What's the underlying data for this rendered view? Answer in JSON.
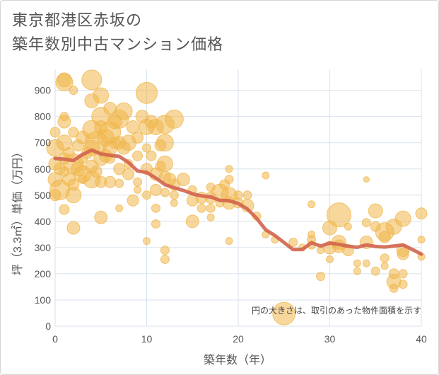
{
  "title": "東京都港区赤坂の\n築年数別中古マンション価格",
  "chart_data": {
    "type": "scatter",
    "title": "東京都港区赤坂の築年数別中古マンション価格",
    "xlabel": "築年数（年）",
    "ylabel": "坪（3.3㎡）単価（万円）",
    "xlim": [
      0,
      40
    ],
    "ylim": [
      0,
      980
    ],
    "xticks": [
      0,
      10,
      20,
      30,
      40
    ],
    "yticks": [
      0,
      100,
      200,
      300,
      400,
      500,
      600,
      700,
      800,
      900
    ],
    "grid": true,
    "annotation": "円の大きさは、取引のあった物件面積を示す",
    "colors": {
      "bubble": "#f0b64a",
      "line": "#d1644e",
      "grid": "#d8e2ec"
    },
    "bubbles": [
      {
        "x": 0,
        "y": 500,
        "r": 8
      },
      {
        "x": 0,
        "y": 560,
        "r": 10
      },
      {
        "x": 0,
        "y": 620,
        "r": 9
      },
      {
        "x": 0,
        "y": 680,
        "r": 12
      },
      {
        "x": 0,
        "y": 740,
        "r": 7
      },
      {
        "x": 0.5,
        "y": 520,
        "r": 14
      },
      {
        "x": 0.5,
        "y": 600,
        "r": 8
      },
      {
        "x": 1,
        "y": 930,
        "r": 12
      },
      {
        "x": 1,
        "y": 940,
        "r": 10
      },
      {
        "x": 1,
        "y": 780,
        "r": 9
      },
      {
        "x": 1,
        "y": 700,
        "r": 11
      },
      {
        "x": 1,
        "y": 640,
        "r": 8
      },
      {
        "x": 1,
        "y": 590,
        "r": 7
      },
      {
        "x": 1,
        "y": 445,
        "r": 7
      },
      {
        "x": 1,
        "y": 800,
        "r": 6
      },
      {
        "x": 1.5,
        "y": 560,
        "r": 9
      },
      {
        "x": 1.5,
        "y": 660,
        "r": 8
      },
      {
        "x": 2,
        "y": 500,
        "r": 11
      },
      {
        "x": 2,
        "y": 620,
        "r": 14
      },
      {
        "x": 2,
        "y": 540,
        "r": 8
      },
      {
        "x": 2,
        "y": 375,
        "r": 9
      },
      {
        "x": 2,
        "y": 740,
        "r": 7
      },
      {
        "x": 2,
        "y": 900,
        "r": 6
      },
      {
        "x": 2.5,
        "y": 600,
        "r": 10
      },
      {
        "x": 2.5,
        "y": 690,
        "r": 8
      },
      {
        "x": 3,
        "y": 580,
        "r": 12
      },
      {
        "x": 3,
        "y": 720,
        "r": 9
      },
      {
        "x": 3,
        "y": 640,
        "r": 7
      },
      {
        "x": 3,
        "y": 560,
        "r": 6
      },
      {
        "x": 3.5,
        "y": 660,
        "r": 8
      },
      {
        "x": 4,
        "y": 940,
        "r": 14
      },
      {
        "x": 4,
        "y": 860,
        "r": 10
      },
      {
        "x": 4,
        "y": 750,
        "r": 13
      },
      {
        "x": 4,
        "y": 680,
        "r": 11
      },
      {
        "x": 4,
        "y": 610,
        "r": 9
      },
      {
        "x": 4,
        "y": 560,
        "r": 12
      },
      {
        "x": 4.5,
        "y": 700,
        "r": 16
      },
      {
        "x": 4.5,
        "y": 590,
        "r": 8
      },
      {
        "x": 5,
        "y": 880,
        "r": 11
      },
      {
        "x": 5,
        "y": 800,
        "r": 13
      },
      {
        "x": 5,
        "y": 760,
        "r": 9
      },
      {
        "x": 5,
        "y": 640,
        "r": 10
      },
      {
        "x": 5,
        "y": 550,
        "r": 8
      },
      {
        "x": 5,
        "y": 415,
        "r": 9
      },
      {
        "x": 5.5,
        "y": 720,
        "r": 12
      },
      {
        "x": 5.5,
        "y": 650,
        "r": 9
      },
      {
        "x": 6,
        "y": 830,
        "r": 9
      },
      {
        "x": 6,
        "y": 740,
        "r": 15
      },
      {
        "x": 6,
        "y": 680,
        "r": 10
      },
      {
        "x": 6,
        "y": 550,
        "r": 8
      },
      {
        "x": 6,
        "y": 640,
        "r": 7
      },
      {
        "x": 6.5,
        "y": 780,
        "r": 10
      },
      {
        "x": 6.5,
        "y": 700,
        "r": 8
      },
      {
        "x": 7,
        "y": 790,
        "r": 13
      },
      {
        "x": 7,
        "y": 700,
        "r": 9
      },
      {
        "x": 7,
        "y": 600,
        "r": 8
      },
      {
        "x": 7,
        "y": 545,
        "r": 6
      },
      {
        "x": 7,
        "y": 450,
        "r": 5
      },
      {
        "x": 7.5,
        "y": 820,
        "r": 12
      },
      {
        "x": 7.5,
        "y": 680,
        "r": 9
      },
      {
        "x": 8,
        "y": 700,
        "r": 11
      },
      {
        "x": 8,
        "y": 580,
        "r": 8
      },
      {
        "x": 8,
        "y": 620,
        "r": 6
      },
      {
        "x": 8.5,
        "y": 760,
        "r": 9
      },
      {
        "x": 8.5,
        "y": 480,
        "r": 8
      },
      {
        "x": 9,
        "y": 720,
        "r": 8
      },
      {
        "x": 9,
        "y": 650,
        "r": 7
      },
      {
        "x": 9,
        "y": 550,
        "r": 6
      },
      {
        "x": 9,
        "y": 520,
        "r": 5
      },
      {
        "x": 9.5,
        "y": 800,
        "r": 9
      },
      {
        "x": 10,
        "y": 890,
        "r": 15
      },
      {
        "x": 10,
        "y": 760,
        "r": 11
      },
      {
        "x": 10,
        "y": 680,
        "r": 6
      },
      {
        "x": 10,
        "y": 600,
        "r": 8
      },
      {
        "x": 10,
        "y": 500,
        "r": 6
      },
      {
        "x": 10,
        "y": 325,
        "r": 5
      },
      {
        "x": 10.5,
        "y": 780,
        "r": 9
      },
      {
        "x": 10.5,
        "y": 650,
        "r": 7
      },
      {
        "x": 11,
        "y": 760,
        "r": 11
      },
      {
        "x": 11,
        "y": 580,
        "r": 9
      },
      {
        "x": 11,
        "y": 520,
        "r": 8
      },
      {
        "x": 11,
        "y": 450,
        "r": 6
      },
      {
        "x": 11,
        "y": 390,
        "r": 6
      },
      {
        "x": 11.5,
        "y": 690,
        "r": 8
      },
      {
        "x": 11.5,
        "y": 610,
        "r": 7
      },
      {
        "x": 12,
        "y": 770,
        "r": 13
      },
      {
        "x": 12,
        "y": 700,
        "r": 12
      },
      {
        "x": 12,
        "y": 620,
        "r": 11
      },
      {
        "x": 12,
        "y": 570,
        "r": 8
      },
      {
        "x": 12,
        "y": 510,
        "r": 6
      },
      {
        "x": 12,
        "y": 290,
        "r": 6
      },
      {
        "x": 12,
        "y": 255,
        "r": 6
      },
      {
        "x": 12.5,
        "y": 560,
        "r": 9
      },
      {
        "x": 13,
        "y": 790,
        "r": 13
      },
      {
        "x": 13,
        "y": 540,
        "r": 8
      },
      {
        "x": 13,
        "y": 500,
        "r": 6
      },
      {
        "x": 13,
        "y": 470,
        "r": 5
      },
      {
        "x": 14,
        "y": 560,
        "r": 9
      },
      {
        "x": 15,
        "y": 520,
        "r": 6
      },
      {
        "x": 15,
        "y": 480,
        "r": 8
      },
      {
        "x": 15,
        "y": 400,
        "r": 9
      },
      {
        "x": 16,
        "y": 490,
        "r": 8
      },
      {
        "x": 16,
        "y": 450,
        "r": 6
      },
      {
        "x": 17,
        "y": 530,
        "r": 6
      },
      {
        "x": 17,
        "y": 490,
        "r": 8
      },
      {
        "x": 17,
        "y": 450,
        "r": 6
      },
      {
        "x": 17,
        "y": 415,
        "r": 5
      },
      {
        "x": 18,
        "y": 510,
        "r": 12
      },
      {
        "x": 18,
        "y": 470,
        "r": 6
      },
      {
        "x": 18.5,
        "y": 540,
        "r": 7
      },
      {
        "x": 19,
        "y": 600,
        "r": 5
      },
      {
        "x": 19,
        "y": 560,
        "r": 6
      },
      {
        "x": 19,
        "y": 500,
        "r": 11
      },
      {
        "x": 19,
        "y": 470,
        "r": 9
      },
      {
        "x": 19,
        "y": 325,
        "r": 5
      },
      {
        "x": 20,
        "y": 500,
        "r": 6
      },
      {
        "x": 20,
        "y": 470,
        "r": 7
      },
      {
        "x": 21,
        "y": 460,
        "r": 9
      },
      {
        "x": 21,
        "y": 500,
        "r": 6
      },
      {
        "x": 22,
        "y": 420,
        "r": 6
      },
      {
        "x": 23,
        "y": 575,
        "r": 5
      },
      {
        "x": 23,
        "y": 350,
        "r": 5
      },
      {
        "x": 24,
        "y": 330,
        "r": 5
      },
      {
        "x": 25,
        "y": 48,
        "r": 16
      },
      {
        "x": 26,
        "y": 320,
        "r": 6
      },
      {
        "x": 27,
        "y": 300,
        "r": 5
      },
      {
        "x": 28,
        "y": 465,
        "r": 5
      },
      {
        "x": 28,
        "y": 350,
        "r": 5
      },
      {
        "x": 28,
        "y": 330,
        "r": 6
      },
      {
        "x": 28,
        "y": 310,
        "r": 6
      },
      {
        "x": 29,
        "y": 290,
        "r": 5
      },
      {
        "x": 29,
        "y": 190,
        "r": 6
      },
      {
        "x": 30,
        "y": 375,
        "r": 10
      },
      {
        "x": 30,
        "y": 300,
        "r": 9
      },
      {
        "x": 30,
        "y": 255,
        "r": 5
      },
      {
        "x": 31,
        "y": 425,
        "r": 17
      },
      {
        "x": 31,
        "y": 320,
        "r": 10
      },
      {
        "x": 31,
        "y": 305,
        "r": 9
      },
      {
        "x": 32,
        "y": 290,
        "r": 8
      },
      {
        "x": 32,
        "y": 380,
        "r": 5
      },
      {
        "x": 33,
        "y": 240,
        "r": 5
      },
      {
        "x": 33,
        "y": 210,
        "r": 5
      },
      {
        "x": 34,
        "y": 560,
        "r": 4
      },
      {
        "x": 34,
        "y": 395,
        "r": 6
      },
      {
        "x": 34,
        "y": 320,
        "r": 9
      },
      {
        "x": 34,
        "y": 240,
        "r": 5
      },
      {
        "x": 35,
        "y": 440,
        "r": 10
      },
      {
        "x": 35,
        "y": 380,
        "r": 7
      },
      {
        "x": 35,
        "y": 210,
        "r": 6
      },
      {
        "x": 36,
        "y": 360,
        "r": 13
      },
      {
        "x": 36,
        "y": 340,
        "r": 8
      },
      {
        "x": 36,
        "y": 260,
        "r": 6
      },
      {
        "x": 36,
        "y": 230,
        "r": 5
      },
      {
        "x": 37,
        "y": 380,
        "r": 11
      },
      {
        "x": 37,
        "y": 200,
        "r": 7
      },
      {
        "x": 37,
        "y": 170,
        "r": 10
      },
      {
        "x": 37,
        "y": 145,
        "r": 6
      },
      {
        "x": 38,
        "y": 410,
        "r": 11
      },
      {
        "x": 38,
        "y": 290,
        "r": 9
      },
      {
        "x": 38,
        "y": 275,
        "r": 8
      },
      {
        "x": 38,
        "y": 200,
        "r": 6
      },
      {
        "x": 38,
        "y": 160,
        "r": 6
      },
      {
        "x": 40,
        "y": 430,
        "r": 8
      },
      {
        "x": 40,
        "y": 330,
        "r": 5
      },
      {
        "x": 40,
        "y": 265,
        "r": 5
      }
    ],
    "trend": [
      {
        "x": 0,
        "y": 640
      },
      {
        "x": 1,
        "y": 637
      },
      {
        "x": 2,
        "y": 632
      },
      {
        "x": 3,
        "y": 655
      },
      {
        "x": 4,
        "y": 672
      },
      {
        "x": 5,
        "y": 657
      },
      {
        "x": 6,
        "y": 652
      },
      {
        "x": 7,
        "y": 648
      },
      {
        "x": 8,
        "y": 625
      },
      {
        "x": 9,
        "y": 592
      },
      {
        "x": 10,
        "y": 587
      },
      {
        "x": 11,
        "y": 565
      },
      {
        "x": 12,
        "y": 540
      },
      {
        "x": 13,
        "y": 528
      },
      {
        "x": 14,
        "y": 518
      },
      {
        "x": 15,
        "y": 505
      },
      {
        "x": 16,
        "y": 497
      },
      {
        "x": 17,
        "y": 493
      },
      {
        "x": 18,
        "y": 480
      },
      {
        "x": 19,
        "y": 479
      },
      {
        "x": 20,
        "y": 468
      },
      {
        "x": 21,
        "y": 447
      },
      {
        "x": 22,
        "y": 412
      },
      {
        "x": 23,
        "y": 368
      },
      {
        "x": 24,
        "y": 346
      },
      {
        "x": 25,
        "y": 319
      },
      {
        "x": 26,
        "y": 292
      },
      {
        "x": 27,
        "y": 293
      },
      {
        "x": 28,
        "y": 318
      },
      {
        "x": 29,
        "y": 306
      },
      {
        "x": 30,
        "y": 317
      },
      {
        "x": 31,
        "y": 312
      },
      {
        "x": 32,
        "y": 305
      },
      {
        "x": 33,
        "y": 301
      },
      {
        "x": 34,
        "y": 310
      },
      {
        "x": 35,
        "y": 304
      },
      {
        "x": 36,
        "y": 302
      },
      {
        "x": 37,
        "y": 306
      },
      {
        "x": 38,
        "y": 310
      },
      {
        "x": 39,
        "y": 293
      },
      {
        "x": 40,
        "y": 275
      }
    ]
  }
}
